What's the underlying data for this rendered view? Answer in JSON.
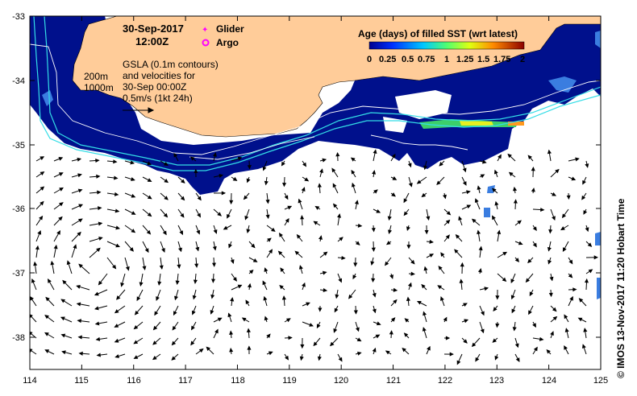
{
  "header": {
    "date": "30-Sep-2017",
    "time": "12:00Z"
  },
  "legend": {
    "glider_label": "Glider",
    "argo_label": "Argo",
    "glider_color": "#ff00ff",
    "argo_color": "#ff00ff"
  },
  "annotations": {
    "depth_200": "200m",
    "depth_1000": "1000m",
    "gsla_line1": "GSLA (0.1m contours)",
    "gsla_line2": "and velocities for",
    "gsla_line3": "30-Sep 00:00Z",
    "gsla_line4": "0.5m/s (1kt 24h)"
  },
  "colorbar": {
    "title": "Age (days) of filled SST (wrt latest)",
    "tick_labels": [
      "0",
      "0.25",
      "0.5",
      "0.75",
      "1",
      "1.25",
      "1.5",
      "1.75",
      "2"
    ],
    "range": [
      0,
      2
    ]
  },
  "axes": {
    "x_ticks": [
      "114",
      "115",
      "116",
      "117",
      "118",
      "119",
      "120",
      "121",
      "122",
      "123",
      "124",
      "125"
    ],
    "y_ticks": [
      "-33",
      "-34",
      "-35",
      "-36",
      "-37",
      "-38"
    ],
    "lon_range": [
      114,
      125
    ],
    "lat_range": [
      -38.5,
      -33
    ]
  },
  "credit": "© IMOS 13-Nov-2017 11:20 Hobart Time",
  "colors": {
    "land": "#ffcc99",
    "sst_fill": "#00108c",
    "sst_light": "#3a7de0",
    "contour": "#ffffff",
    "isobath": "#33dde6",
    "frame": "#000000"
  }
}
